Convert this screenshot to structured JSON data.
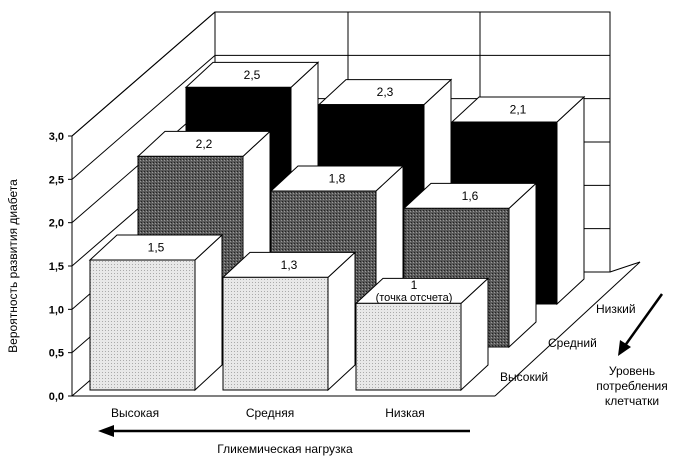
{
  "chart_data": {
    "type": "bar",
    "subtype": "3d-grouped",
    "ylabel": "Вероятность развития диабета",
    "xlabel": "Гликемическая нагрузка",
    "zlabel": "Уровень потребления клетчатки",
    "ylim": [
      0,
      3.0
    ],
    "yticks": [
      "0,0",
      "0,5",
      "1,0",
      "1,5",
      "2,0",
      "2,5",
      "3,0"
    ],
    "categories": [
      "Высокая",
      "Средняя",
      "Низкая"
    ],
    "grid": true,
    "series": [
      {
        "name": "Высокий",
        "values": [
          1.5,
          1.3,
          1.0
        ],
        "labels": [
          "1,5",
          "1,3",
          "1"
        ],
        "color": "#e4e4e4"
      },
      {
        "name": "Средний",
        "values": [
          2.2,
          1.8,
          1.6
        ],
        "labels": [
          "2,2",
          "1,8",
          "1,6"
        ],
        "color": "#555555"
      },
      {
        "name": "Низкий",
        "values": [
          2.5,
          2.3,
          2.1
        ],
        "labels": [
          "2,5",
          "2,3",
          "2,1"
        ],
        "color": "#000000"
      }
    ],
    "annotations": [
      "(точка отсчета)"
    ],
    "zlabel_lines": [
      "Уровень",
      "потребления",
      "клетчатки"
    ]
  }
}
